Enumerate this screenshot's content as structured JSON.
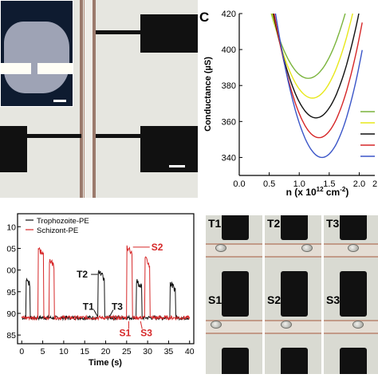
{
  "micrograph": {
    "scale_bar": ""
  },
  "panel_c": {
    "label": "C",
    "chart_data": {
      "type": "line",
      "xlabel": "n (x 10",
      "xlabel_sup": "12",
      "xlabel_unit": " cm",
      "xlabel_sup2": "-2",
      "xlabel_end": ")",
      "ylabel": "Conductance (µS)",
      "xlim": [
        0,
        2.0
      ],
      "ylim": [
        330,
        420
      ],
      "xticks": [
        "0.0",
        "0.5",
        "1.0",
        "1.5",
        "2.0",
        "2"
      ],
      "yticks": [
        "340",
        "360",
        "380",
        "400",
        "420"
      ],
      "series": [
        {
          "color": "#7ab43c",
          "min_x": 1.15,
          "min_y": 384
        },
        {
          "color": "#e8e81a",
          "min_x": 1.22,
          "min_y": 373
        },
        {
          "color": "#111111",
          "min_x": 1.28,
          "min_y": 362
        },
        {
          "color": "#d62728",
          "min_x": 1.33,
          "min_y": 351
        },
        {
          "color": "#3a55c8",
          "min_x": 1.38,
          "min_y": 340
        }
      ]
    }
  },
  "panel_trace": {
    "chart_data": {
      "type": "line",
      "xlabel": "Time (s)",
      "xlim": [
        -1,
        41
      ],
      "ylim": [
        183,
        213
      ],
      "xticks": [
        "0",
        "5",
        "10",
        "15",
        "20",
        "25",
        "30",
        "35",
        "40"
      ],
      "yticks": [
        "85",
        "90",
        "95",
        "00",
        "05",
        "10"
      ],
      "series": [
        {
          "name": "Trophozoite-PE",
          "color": "#111111",
          "pulses": [
            [
              1.0,
              2.0,
              198
            ],
            [
              18.2,
              19.7,
              199.5
            ],
            [
              27.3,
              28.6,
              197.5
            ],
            [
              35.4,
              36.6,
              197
            ]
          ]
        },
        {
          "name": "Schizont-PE",
          "color": "#d62728",
          "pulses": [
            [
              3.9,
              5.2,
              205
            ],
            [
              6.6,
              7.7,
              202.5
            ],
            [
              25.0,
              26.3,
              205.5
            ],
            [
              29.4,
              30.6,
              202.5
            ]
          ]
        }
      ],
      "annotations": [
        {
          "text": "T1",
          "color": "#111111"
        },
        {
          "text": "T2",
          "color": "#111111"
        },
        {
          "text": "T3",
          "color": "#111111"
        },
        {
          "text": "S1",
          "color": "#d62728"
        },
        {
          "text": "S2",
          "color": "#d62728"
        },
        {
          "text": "S3",
          "color": "#d62728"
        }
      ]
    }
  },
  "tiles": [
    "T1",
    "T2",
    "T3",
    "S1",
    "S2",
    "S3"
  ]
}
